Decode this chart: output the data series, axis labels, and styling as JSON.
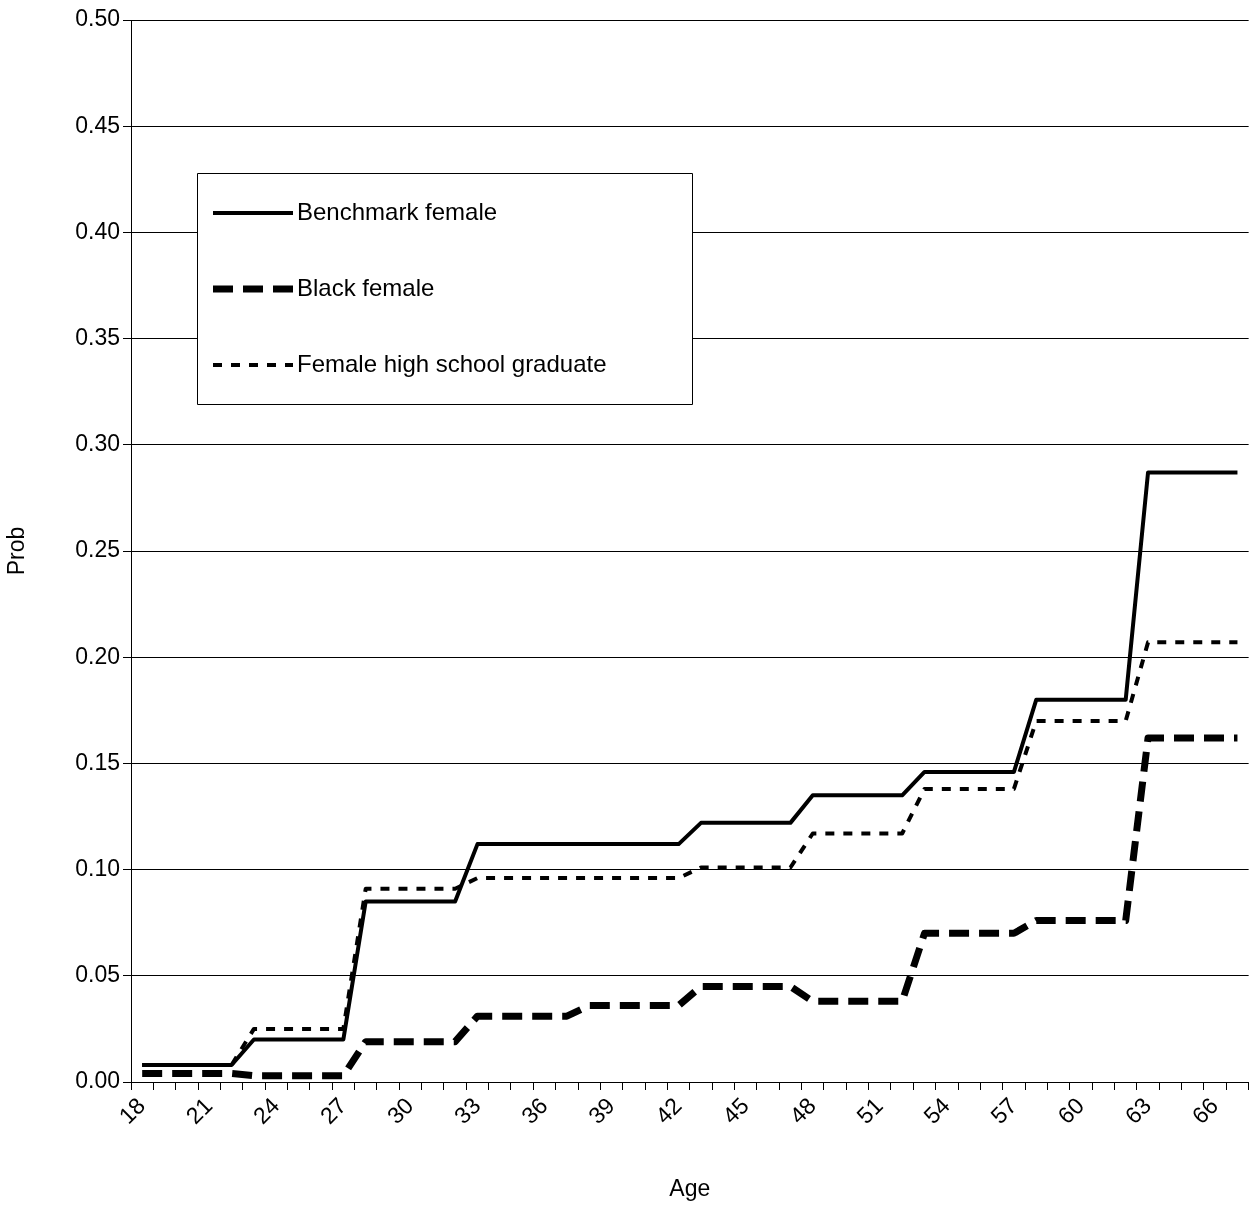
{
  "chart_data": {
    "type": "line",
    "xlabel": "Age",
    "ylabel": "Prob",
    "categories": [
      "18",
      null,
      null,
      "21",
      null,
      null,
      "24",
      null,
      null,
      "27",
      null,
      null,
      "30",
      null,
      null,
      "33",
      null,
      null,
      "36",
      null,
      null,
      "39",
      null,
      null,
      "42",
      null,
      null,
      "45",
      null,
      null,
      "48",
      null,
      null,
      "51",
      null,
      null,
      "54",
      null,
      null,
      "57",
      null,
      null,
      "60",
      null,
      null,
      "63",
      null,
      null,
      "66",
      null
    ],
    "series": [
      {
        "name": "Benchmark female",
        "color": "#000000",
        "line_style": "solid",
        "values": [
          0.008,
          0.008,
          0.008,
          0.008,
          0.008,
          0.02,
          0.02,
          0.02,
          0.02,
          0.02,
          0.085,
          0.085,
          0.085,
          0.085,
          0.085,
          0.112,
          0.112,
          0.112,
          0.112,
          0.112,
          0.112,
          0.112,
          0.112,
          0.112,
          0.112,
          0.122,
          0.122,
          0.122,
          0.122,
          0.122,
          0.135,
          0.135,
          0.135,
          0.135,
          0.135,
          0.146,
          0.146,
          0.146,
          0.146,
          0.146,
          0.18,
          0.18,
          0.18,
          0.18,
          0.18,
          0.287,
          0.287,
          0.287,
          0.287,
          0.287
        ]
      },
      {
        "name": "Black female",
        "color": "#000000",
        "line_style": "dashed",
        "values": [
          0.004,
          0.004,
          0.004,
          0.004,
          0.004,
          0.003,
          0.003,
          0.003,
          0.003,
          0.003,
          0.019,
          0.019,
          0.019,
          0.019,
          0.019,
          0.031,
          0.031,
          0.031,
          0.031,
          0.031,
          0.036,
          0.036,
          0.036,
          0.036,
          0.036,
          0.045,
          0.045,
          0.045,
          0.045,
          0.045,
          0.038,
          0.038,
          0.038,
          0.038,
          0.038,
          0.07,
          0.07,
          0.07,
          0.07,
          0.07,
          0.076,
          0.076,
          0.076,
          0.076,
          0.076,
          0.162,
          0.162,
          0.162,
          0.162,
          0.162
        ]
      },
      {
        "name": "Female high school graduate",
        "color": "#000000",
        "line_style": "dotted",
        "values": [
          0.008,
          0.008,
          0.008,
          0.008,
          0.008,
          0.025,
          0.025,
          0.025,
          0.025,
          0.025,
          0.091,
          0.091,
          0.091,
          0.091,
          0.091,
          0.096,
          0.096,
          0.096,
          0.096,
          0.096,
          0.096,
          0.096,
          0.096,
          0.096,
          0.096,
          0.101,
          0.101,
          0.101,
          0.101,
          0.101,
          0.117,
          0.117,
          0.117,
          0.117,
          0.117,
          0.138,
          0.138,
          0.138,
          0.138,
          0.138,
          0.17,
          0.17,
          0.17,
          0.17,
          0.17,
          0.207,
          0.207,
          0.207,
          0.207,
          0.207
        ]
      }
    ],
    "ylim": [
      0,
      0.5
    ],
    "yticks": [
      {
        "value": 0,
        "label": "0.00"
      },
      {
        "value": 0.05,
        "label": "0.05"
      },
      {
        "value": 0.1,
        "label": "0.10"
      },
      {
        "value": 0.15,
        "label": "0.15"
      },
      {
        "value": 0.2,
        "label": "0.20"
      },
      {
        "value": 0.25,
        "label": "0.25"
      },
      {
        "value": 0.3,
        "label": "0.30"
      },
      {
        "value": 0.35,
        "label": "0.35"
      },
      {
        "value": 0.4,
        "label": "0.40"
      },
      {
        "value": 0.45,
        "label": "0.45"
      },
      {
        "value": 0.5,
        "label": "0.50"
      }
    ],
    "grid": "y",
    "legend": "top left",
    "marker": "none"
  }
}
